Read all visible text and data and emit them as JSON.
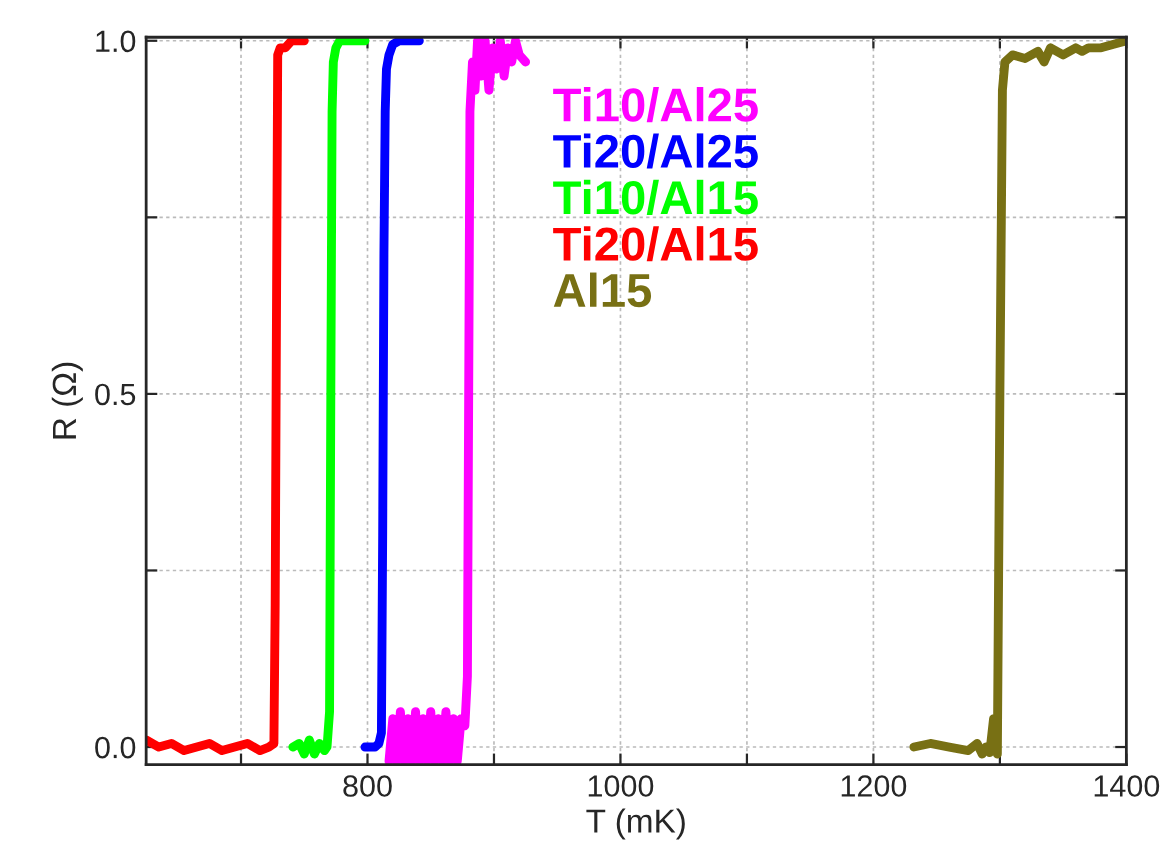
{
  "chart_data": {
    "type": "line",
    "xlabel": "T (mK)",
    "ylabel": "R (Ω)",
    "xlim": [
      625,
      1400
    ],
    "ylim": [
      -0.025,
      1.005
    ],
    "xticks": [
      {
        "value": 700,
        "label": null
      },
      800,
      {
        "value": 900,
        "label": null
      },
      1000,
      {
        "value": 1100,
        "label": null
      },
      1200,
      {
        "value": 1300,
        "label": null
      },
      1400
    ],
    "yticks": [
      {
        "value": 0,
        "label": "0.0"
      },
      {
        "value": 0.25,
        "label": null
      },
      0.5,
      {
        "value": 0.75,
        "label": null
      },
      {
        "value": 1,
        "label": "1.0"
      }
    ],
    "grid": true,
    "legend": "top",
    "line_style": "solid",
    "marker": "none",
    "series": [
      {
        "name": "Ti10/Al25",
        "color": "#ff00ff",
        "x": [
          817,
          820,
          823,
          826,
          829,
          832,
          835,
          838,
          841,
          844,
          847,
          850,
          853,
          856,
          859,
          862,
          865,
          868,
          871,
          874,
          877,
          879,
          880,
          881,
          883,
          885,
          887,
          890,
          893,
          896,
          899,
          902,
          905,
          908,
          911,
          914,
          917,
          920,
          925
        ],
        "values": [
          -0.02,
          0.04,
          -0.02,
          0.05,
          -0.02,
          0.04,
          -0.02,
          0.05,
          -0.02,
          0.04,
          -0.02,
          0.05,
          -0.02,
          0.04,
          -0.02,
          0.05,
          -0.02,
          0.04,
          -0.02,
          0.04,
          0.03,
          0.1,
          0.5,
          0.9,
          0.97,
          0.93,
          1.0,
          0.95,
          1.0,
          0.93,
          0.99,
          0.96,
          1.0,
          0.95,
          0.99,
          0.97,
          1.0,
          0.98,
          0.97
        ]
      },
      {
        "name": "Ti20/Al25",
        "color": "#0000ff",
        "x": [
          798,
          806,
          809,
          811,
          812,
          813,
          814,
          815,
          817,
          820,
          825,
          830,
          841
        ],
        "values": [
          0.0,
          0.0,
          0.005,
          0.02,
          0.3,
          0.7,
          0.9,
          0.96,
          0.98,
          0.995,
          1.0,
          1.0,
          1.0
        ]
      },
      {
        "name": "Ti10/Al15",
        "color": "#00ff00",
        "x": [
          741,
          746,
          750,
          754,
          758,
          762,
          766,
          768,
          770,
          771,
          772,
          773,
          775,
          778,
          782,
          790,
          798
        ],
        "values": [
          0.0,
          0.005,
          -0.01,
          0.01,
          -0.01,
          0.005,
          -0.005,
          0.0,
          0.05,
          0.5,
          0.9,
          0.97,
          0.99,
          1.0,
          1.0,
          1.0,
          1.0
        ]
      },
      {
        "name": "Ti20/Al15",
        "color": "#ff0000",
        "x": [
          625,
          635,
          645,
          655,
          665,
          675,
          685,
          695,
          705,
          715,
          722,
          726,
          727,
          728,
          729,
          731,
          735,
          740,
          745,
          750
        ],
        "values": [
          0.01,
          0.0,
          0.005,
          -0.005,
          0.0,
          0.005,
          -0.005,
          0.0,
          0.005,
          -0.005,
          0.0,
          0.005,
          0.2,
          0.6,
          0.98,
          0.99,
          0.99,
          1.0,
          1.0,
          1.0
        ]
      },
      {
        "name": "Al15",
        "color": "#787014",
        "x": [
          1232,
          1245,
          1260,
          1275,
          1282,
          1286,
          1289,
          1292,
          1295,
          1298,
          1300,
          1302,
          1304,
          1310,
          1320,
          1330,
          1335,
          1340,
          1350,
          1360,
          1365,
          1370,
          1380,
          1390,
          1400
        ],
        "values": [
          0.0,
          0.005,
          0.0,
          -0.005,
          0.005,
          -0.01,
          0.0,
          -0.008,
          0.04,
          -0.01,
          0.5,
          0.93,
          0.97,
          0.98,
          0.975,
          0.985,
          0.97,
          0.99,
          0.98,
          0.99,
          0.985,
          0.99,
          0.99,
          0.995,
          1.0
        ]
      }
    ]
  }
}
